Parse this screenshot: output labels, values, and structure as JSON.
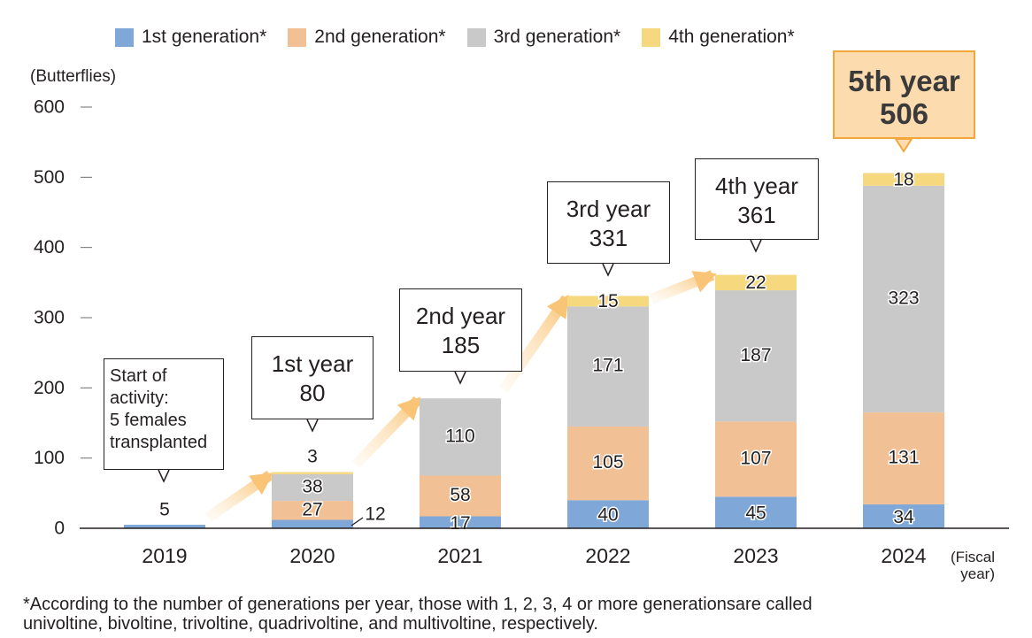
{
  "legend": {
    "items": [
      {
        "label": "1st generation*",
        "color": "#7fa7d8"
      },
      {
        "label": "2nd generation*",
        "color": "#f1c095"
      },
      {
        "label": "3rd generation*",
        "color": "#c9c9c9"
      },
      {
        "label": "4th generation*",
        "color": "#f6d87e"
      }
    ]
  },
  "y_unit": "(Butterflies)",
  "fiscal_label": {
    "line1": "(Fiscal",
    "line2": "year)"
  },
  "start_note": {
    "line1": "Start of",
    "line2": "activity:",
    "line3": "5 females",
    "line4": "transplanted"
  },
  "callouts": [
    {
      "line1": "1st year",
      "line2": "80"
    },
    {
      "line1": "2nd year",
      "line2": "185"
    },
    {
      "line1": "3rd year",
      "line2": "331"
    },
    {
      "line1": "4th year",
      "line2": "361"
    }
  ],
  "highlight": {
    "line1": "5th year",
    "line2": "506"
  },
  "footnote": {
    "line1": "*According to the number of generations per year, those with 1, 2, 3, 4 or more generationsare called",
    "line2": " univoltine, bivoltine, trivoltine, quadrivoltine, and multivoltine, respectively."
  },
  "chart_data": {
    "type": "bar",
    "stacked": true,
    "categories": [
      "2019",
      "2020",
      "2021",
      "2022",
      "2023",
      "2024"
    ],
    "series": [
      {
        "name": "1st generation*",
        "values": [
          5,
          12,
          17,
          40,
          45,
          34
        ]
      },
      {
        "name": "2nd generation*",
        "values": [
          0,
          27,
          58,
          105,
          107,
          131
        ]
      },
      {
        "name": "3rd generation*",
        "values": [
          0,
          38,
          110,
          171,
          187,
          323
        ]
      },
      {
        "name": "4th generation*",
        "values": [
          0,
          3,
          0,
          15,
          22,
          18
        ]
      }
    ],
    "totals": [
      5,
      80,
      185,
      331,
      361,
      506
    ],
    "data_labels": {
      "gen1": [
        "5",
        "12",
        "17",
        "40",
        "45",
        "34"
      ],
      "gen2": [
        "",
        "27",
        "58",
        "105",
        "107",
        "131"
      ],
      "gen3": [
        "",
        "38",
        "110",
        "171",
        "187",
        "323"
      ],
      "gen4": [
        "",
        "3",
        "",
        "15",
        "22",
        "18"
      ]
    },
    "yticks": [
      "0",
      "100",
      "200",
      "300",
      "400",
      "500",
      "600"
    ],
    "ylim": [
      0,
      600
    ],
    "ylabel": "(Butterflies)",
    "xlabel": "(Fiscal year)",
    "grid": false,
    "legend_position": "top"
  }
}
